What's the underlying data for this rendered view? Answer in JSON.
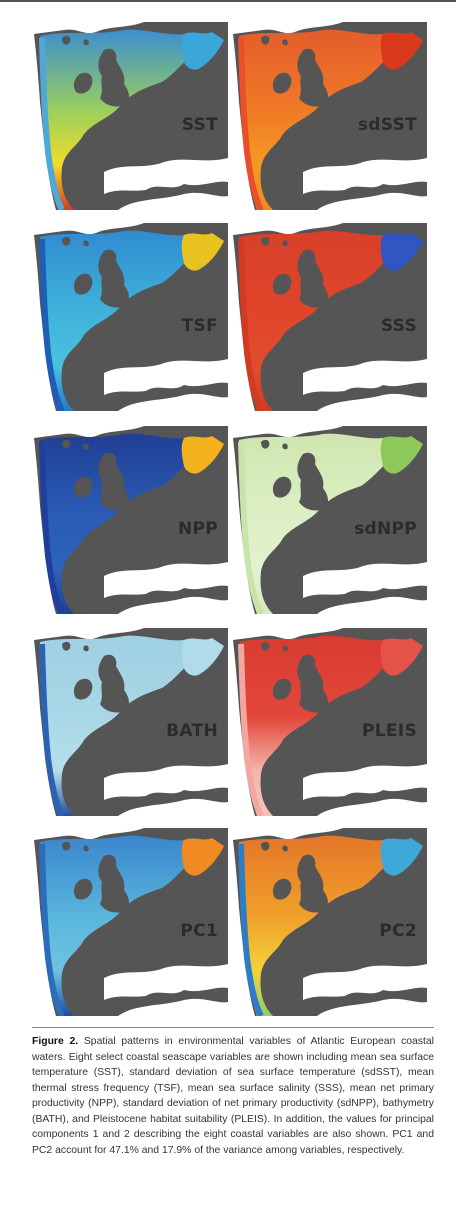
{
  "figure": {
    "panels": [
      {
        "label": "SST",
        "coast": "#4ea9d6",
        "shelf": "#9bcf5c",
        "north": "#3b8fd0",
        "south": "#f2dc2a",
        "deep": "#d8391a",
        "baltic": "#3da6d9"
      },
      {
        "label": "sdSST",
        "coast": "#e8502a",
        "shelf": "#f07a26",
        "north": "#e45c2c",
        "south": "#f59a22",
        "deep": "#ee8a1e",
        "baltic": "#d93a1c"
      },
      {
        "label": "TSF",
        "coast": "#1c5fb5",
        "shelf": "#3fb2da",
        "north": "#2f8cd0",
        "south": "#4bc1e0",
        "deep": "#2a78c4",
        "baltic": "#e8c21e"
      },
      {
        "label": "SSS",
        "coast": "#d23a22",
        "shelf": "#e0452a",
        "north": "#d8402a",
        "south": "#e24c2e",
        "deep": "#d43b24",
        "baltic": "#2f56c2"
      },
      {
        "label": "NPP",
        "coast": "#1e3f9c",
        "shelf": "#2a5cb6",
        "north": "#203f94",
        "south": "#2c63b8",
        "deep": "#203f96",
        "baltic": "#f3b21e"
      },
      {
        "label": "sdNPP",
        "coast": "#c9e4a8",
        "shelf": "#dcefc4",
        "north": "#cfe6b0",
        "south": "#e3f1d0",
        "deep": "#d6eabd",
        "baltic": "#8cc85a"
      },
      {
        "label": "BATH",
        "coast": "#2c62b2",
        "shelf": "#a9d7e6",
        "north": "#9ed1e2",
        "south": "#b7dfea",
        "deep": "#2a4fa0",
        "baltic": "#b0dbe8"
      },
      {
        "label": "PLEIS",
        "coast": "#f2a7a0",
        "shelf": "#e3463a",
        "north": "#d83b30",
        "south": "#f3b6ad",
        "deep": "#f4c2bb",
        "baltic": "#e4524a"
      },
      {
        "label": "PC1",
        "coast": "#2b6dbd",
        "shelf": "#59b6dc",
        "north": "#3b86cc",
        "south": "#6fc3e0",
        "deep": "#1e4aa2",
        "baltic": "#f08a22"
      },
      {
        "label": "PC2",
        "coast": "#2d7cc4",
        "shelf": "#f0a02a",
        "north": "#e4762a",
        "south": "#f4d23a",
        "deep": "#8ccf6a",
        "baltic": "#3ea9d8"
      }
    ]
  },
  "caption": {
    "lead": "Figure 2.",
    "text": " Spatial patterns in environmental variables of Atlantic European coastal waters. Eight select coastal seascape variables are shown including mean sea surface temperature (SST), standard deviation of sea surface temperature (sdSST), mean thermal stress frequency (TSF), mean sea surface salinity (SSS), mean net primary productivity (NPP), standard deviation of net primary productivity (sdNPP), bathymetry (BATH), and Pleistocene habitat suitability (PLEIS). In addition, the values for principal components 1 and 2 describing the eight coastal variables are also shown. PC1 and PC2 account for 47.1% and 17.9% of the variance among variables, respectively."
  }
}
